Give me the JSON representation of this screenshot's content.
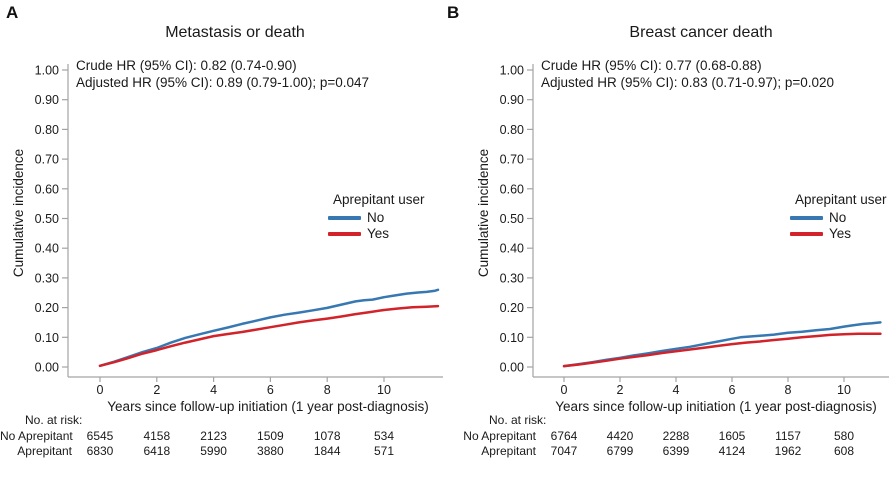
{
  "figure": {
    "panels": [
      {
        "letter": "A"
      },
      {
        "letter": "B"
      }
    ]
  },
  "chart_data": [
    {
      "type": "line",
      "title": "Metastasis or death",
      "xlabel": "Years since follow-up initiation (1 year post-diagnosis)",
      "ylabel": "Cumulative incidence",
      "xlim": [
        0,
        11.9
      ],
      "ylim": [
        0,
        1.0
      ],
      "xticks": [
        0,
        2,
        4,
        6,
        8,
        10
      ],
      "yticks": [
        "0.00",
        "0.10",
        "0.20",
        "0.30",
        "0.40",
        "0.50",
        "0.60",
        "0.70",
        "0.80",
        "0.90",
        "1.00"
      ],
      "grid": false,
      "legend_position": "right-middle",
      "legend_title": "Aprepitant user",
      "annotations": [
        "Crude HR (95% CI): 0.82 (0.74-0.90)",
        "Adjusted HR (95% CI): 0.89 (0.79-1.00); p=0.047"
      ],
      "series": [
        {
          "name": "No",
          "color": "#3778b2",
          "x": [
            0,
            0.5,
            1,
            1.5,
            2,
            2.5,
            3,
            3.5,
            4,
            4.5,
            5,
            5.5,
            6,
            6.5,
            7,
            7.5,
            8,
            8.5,
            9,
            9.3,
            9.6,
            10,
            10.4,
            10.8,
            11.2,
            11.5,
            11.8,
            11.9
          ],
          "y": [
            0.004,
            0.018,
            0.034,
            0.05,
            0.064,
            0.082,
            0.098,
            0.11,
            0.122,
            0.133,
            0.145,
            0.156,
            0.167,
            0.176,
            0.183,
            0.191,
            0.199,
            0.21,
            0.221,
            0.225,
            0.227,
            0.235,
            0.241,
            0.247,
            0.251,
            0.253,
            0.257,
            0.26
          ]
        },
        {
          "name": "Yes",
          "color": "#d2232a",
          "x": [
            0,
            0.5,
            1,
            1.5,
            2,
            2.5,
            3,
            3.5,
            4,
            4.5,
            5,
            5.5,
            6,
            6.5,
            7,
            7.5,
            8,
            8.5,
            9,
            9.5,
            10,
            10.5,
            11,
            11.5,
            11.9
          ],
          "y": [
            0.004,
            0.016,
            0.03,
            0.045,
            0.057,
            0.07,
            0.082,
            0.093,
            0.104,
            0.111,
            0.118,
            0.126,
            0.134,
            0.142,
            0.15,
            0.157,
            0.163,
            0.17,
            0.178,
            0.185,
            0.192,
            0.197,
            0.201,
            0.203,
            0.205
          ]
        }
      ],
      "risk_table": {
        "header": "No. at risk:",
        "value_years": [
          0,
          2,
          4,
          6,
          8,
          10
        ],
        "rows": [
          {
            "label": "No Aprepitant",
            "values": [
              "6545",
              "4158",
              "2123",
              "1509",
              "1078",
              "534"
            ]
          },
          {
            "label": "Aprepitant",
            "values": [
              "6830",
              "6418",
              "5990",
              "3880",
              "1844",
              "571"
            ]
          }
        ]
      }
    },
    {
      "type": "line",
      "title": "Breast cancer death",
      "xlabel": "Years since follow-up initiation (1 year post-diagnosis)",
      "ylabel": "Cumulative incidence",
      "xlim": [
        0,
        11.3
      ],
      "ylim": [
        0,
        1.0
      ],
      "xticks": [
        0,
        2,
        4,
        6,
        8,
        10
      ],
      "yticks": [
        "0.00",
        "0.10",
        "0.20",
        "0.30",
        "0.40",
        "0.50",
        "0.60",
        "0.70",
        "0.80",
        "0.90",
        "1.00"
      ],
      "grid": false,
      "legend_position": "right-middle",
      "legend_title": "Aprepitant user",
      "annotations": [
        "Crude HR (95% CI): 0.77 (0.68-0.88)",
        "Adjusted HR (95% CI): 0.83 (0.71-0.97); p=0.020"
      ],
      "series": [
        {
          "name": "No",
          "color": "#3778b2",
          "x": [
            0,
            0.5,
            1,
            1.5,
            2,
            2.5,
            3,
            3.5,
            4,
            4.5,
            5,
            5.5,
            6,
            6.3,
            6.7,
            7,
            7.5,
            8,
            8.5,
            9,
            9.5,
            10,
            10.3,
            10.7,
            11,
            11.3
          ],
          "y": [
            0.003,
            0.009,
            0.016,
            0.024,
            0.031,
            0.039,
            0.046,
            0.054,
            0.061,
            0.068,
            0.077,
            0.086,
            0.095,
            0.1,
            0.103,
            0.105,
            0.109,
            0.115,
            0.119,
            0.124,
            0.128,
            0.136,
            0.14,
            0.145,
            0.147,
            0.15
          ]
        },
        {
          "name": "Yes",
          "color": "#d2232a",
          "x": [
            0,
            0.5,
            1,
            1.5,
            2,
            2.5,
            3,
            3.5,
            4,
            4.5,
            5,
            5.5,
            6,
            6.5,
            7,
            7.5,
            8,
            8.5,
            9,
            9.5,
            10,
            10.5,
            11,
            11.3
          ],
          "y": [
            0.003,
            0.008,
            0.014,
            0.021,
            0.028,
            0.034,
            0.04,
            0.047,
            0.053,
            0.059,
            0.065,
            0.071,
            0.077,
            0.082,
            0.086,
            0.091,
            0.095,
            0.1,
            0.104,
            0.108,
            0.11,
            0.112,
            0.112,
            0.112
          ]
        }
      ],
      "risk_table": {
        "header": "No. at risk:",
        "value_years": [
          0,
          2,
          4,
          6,
          8,
          10
        ],
        "rows": [
          {
            "label": "No Aprepitant",
            "values": [
              "6764",
              "4420",
              "2288",
              "1605",
              "1157",
              "580"
            ]
          },
          {
            "label": "Aprepitant",
            "values": [
              "7047",
              "6799",
              "6399",
              "4124",
              "1962",
              "608"
            ]
          }
        ]
      }
    }
  ]
}
